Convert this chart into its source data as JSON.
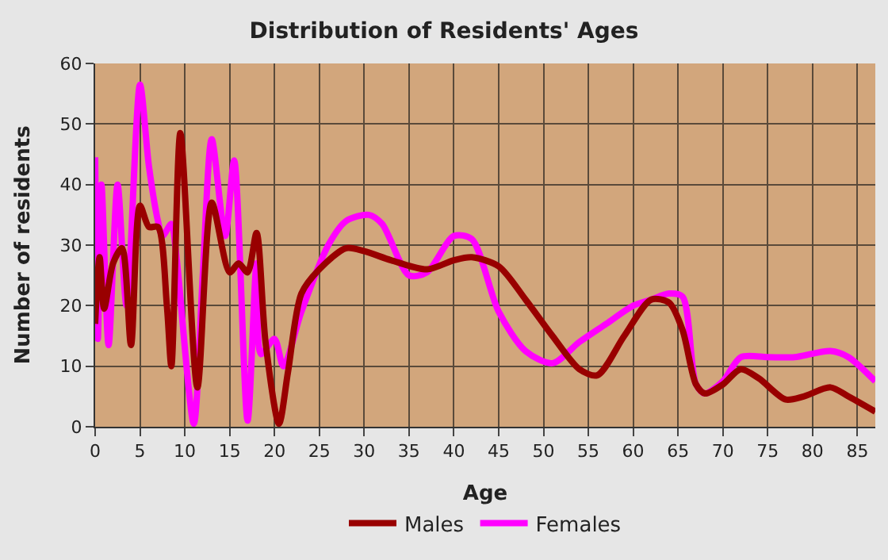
{
  "chart_data": {
    "type": "line",
    "title": "Distribution of Residents' Ages",
    "xlabel": "Age",
    "ylabel": "Number of residents",
    "xlim": [
      0,
      87
    ],
    "ylim": [
      0,
      60
    ],
    "xticks": [
      0,
      5,
      10,
      15,
      20,
      25,
      30,
      35,
      40,
      45,
      50,
      55,
      60,
      65,
      70,
      75,
      80,
      85
    ],
    "yticks": [
      0,
      10,
      20,
      30,
      40,
      50,
      60
    ],
    "grid": true,
    "legend": "bottom",
    "marker": "none",
    "line_style": "solid",
    "series": [
      {
        "name": "Males",
        "color": "#990000",
        "x": [
          0,
          0.5,
          1,
          2,
          3,
          4,
          5,
          6,
          7,
          8,
          8.5,
          9.5,
          11.4,
          13,
          15,
          16,
          17,
          18,
          19,
          20.5,
          21.5,
          23,
          25,
          28,
          30,
          33,
          37,
          40,
          42,
          45,
          48,
          51,
          54,
          56,
          59,
          62,
          64,
          65.5,
          67,
          68,
          70,
          72,
          74,
          77,
          79,
          82,
          84,
          87
        ],
        "values": [
          17,
          28,
          19.5,
          27,
          29.5,
          13.5,
          36.5,
          33,
          33,
          20,
          10,
          48.5,
          6.5,
          37,
          25.5,
          27,
          25.5,
          32,
          14,
          0.5,
          9,
          22,
          26,
          29.5,
          29,
          27.5,
          26,
          27.5,
          28,
          26.5,
          21,
          15,
          9.5,
          8.5,
          15,
          21,
          20.5,
          16,
          7,
          5.5,
          7,
          9.5,
          8,
          4.5,
          5,
          6.5,
          5,
          2.5
        ]
      },
      {
        "name": "Females",
        "color": "#ff00ff",
        "x": [
          0,
          0.3,
          0.7,
          1.5,
          2.5,
          3.5,
          5,
          6,
          7,
          7.5,
          8.5,
          9,
          11,
          12,
          13,
          14.5,
          15.5,
          17,
          18,
          18.5,
          20,
          21,
          23,
          26,
          28,
          30.5,
          32,
          35,
          37,
          40,
          42,
          45,
          48,
          51,
          54,
          57,
          60,
          62,
          64,
          65.5,
          67,
          68,
          70,
          72,
          75,
          78,
          82,
          84,
          87
        ],
        "values": [
          44.5,
          14.5,
          40,
          13.5,
          40,
          20,
          56.5,
          43,
          34,
          31.5,
          33.5,
          29,
          0.5,
          25,
          47.5,
          31.5,
          44,
          1,
          27,
          12,
          14.5,
          10,
          19,
          30,
          34,
          35,
          33.5,
          25,
          25.5,
          31.5,
          31,
          19,
          12.5,
          10.5,
          14,
          17,
          20,
          21,
          22,
          21.5,
          7,
          5.5,
          7.5,
          11.5,
          11.5,
          11.5,
          12.5,
          11.5,
          7.5
        ]
      }
    ]
  }
}
